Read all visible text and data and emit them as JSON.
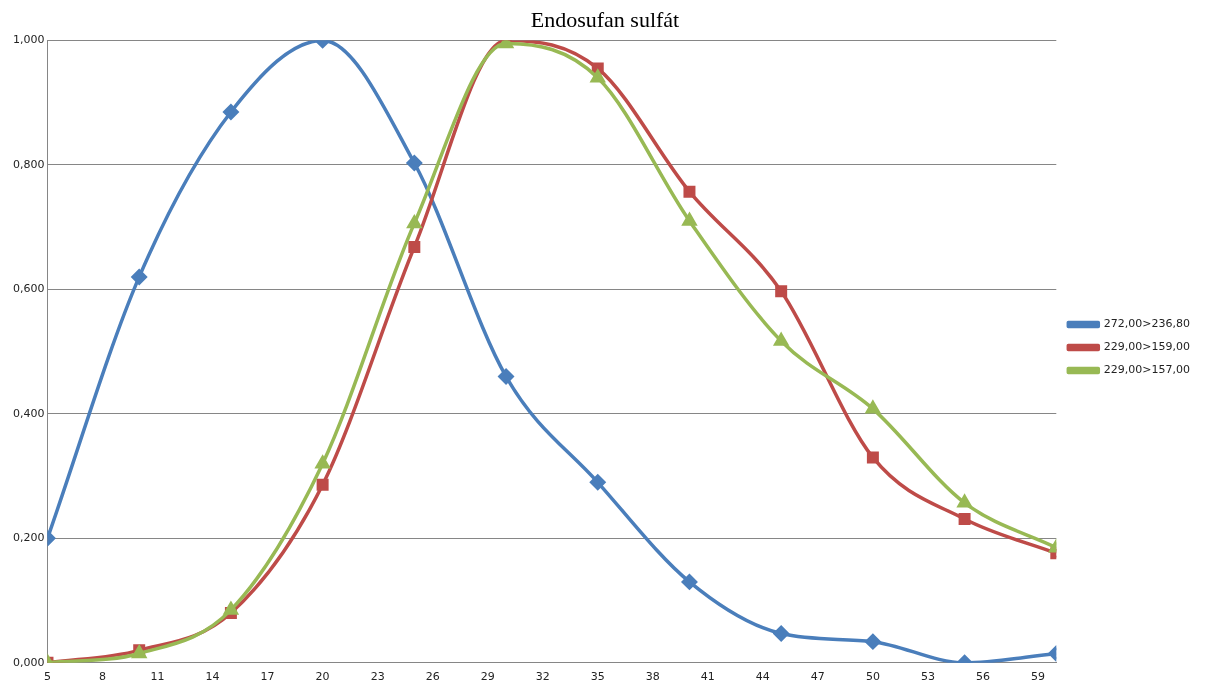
{
  "chart_data": {
    "type": "line",
    "title": "Endosufan sulfát",
    "x": [
      5,
      10,
      15,
      20,
      25,
      30,
      35,
      40,
      45,
      50,
      55,
      60
    ],
    "series": [
      {
        "name": "272,00>236,80",
        "color": "#4a7ebb",
        "marker": "diamond",
        "values": [
          0.2,
          0.62,
          0.885,
          1.0,
          0.803,
          0.46,
          0.29,
          0.13,
          0.047,
          0.034,
          0.0,
          0.015
        ]
      },
      {
        "name": "229,00>159,00",
        "color": "#be4b48",
        "marker": "square",
        "values": [
          0.0,
          0.02,
          0.08,
          0.286,
          0.668,
          1.0,
          0.955,
          0.757,
          0.597,
          0.33,
          0.231,
          0.176
        ]
      },
      {
        "name": "229,00>157,00",
        "color": "#98b954",
        "marker": "triangle",
        "values": [
          0.0,
          0.015,
          0.085,
          0.32,
          0.706,
          0.995,
          0.94,
          0.71,
          0.517,
          0.408,
          0.257,
          0.185
        ]
      }
    ],
    "xlim": [
      5,
      60
    ],
    "xticks": [
      5,
      8,
      11,
      14,
      17,
      20,
      23,
      26,
      29,
      32,
      35,
      38,
      41,
      44,
      47,
      50,
      53,
      56,
      59
    ],
    "ylim": [
      0,
      1
    ],
    "yticks": [
      {
        "value": 0,
        "label": "0,000"
      },
      {
        "value": 0.2,
        "label": "0,200"
      },
      {
        "value": 0.4,
        "label": "0,400"
      },
      {
        "value": 0.6,
        "label": "0,600"
      },
      {
        "value": 0.8,
        "label": "0,800"
      },
      {
        "value": 1,
        "label": "1,000"
      }
    ],
    "grid": "y",
    "legend": "right",
    "line_style": "solid"
  }
}
